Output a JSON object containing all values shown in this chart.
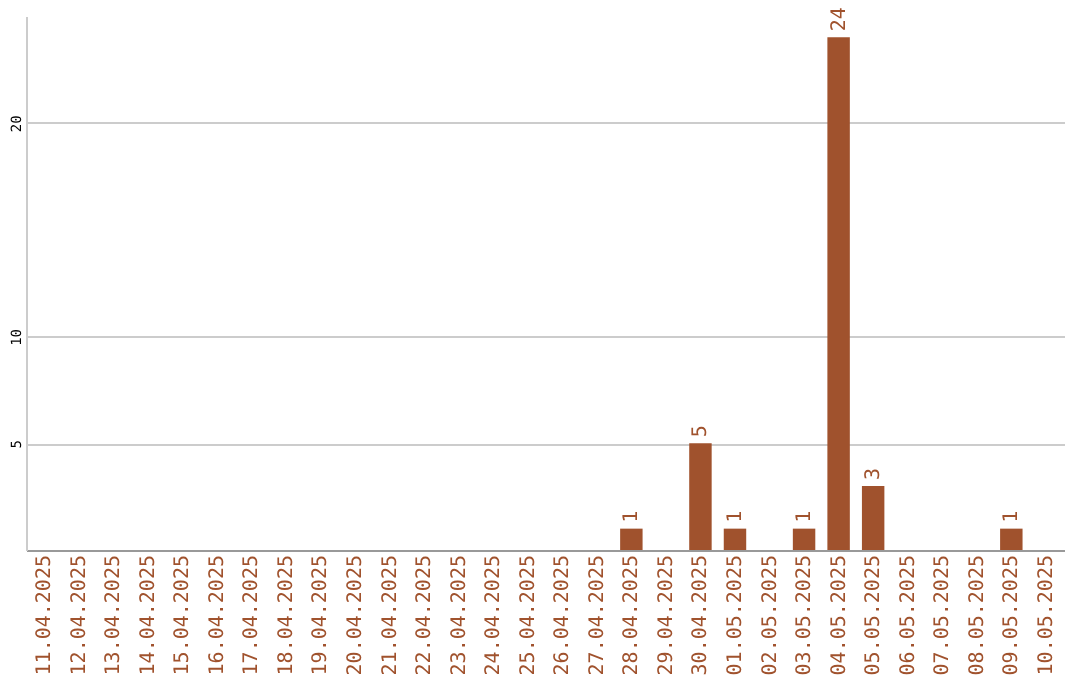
{
  "chart_data": {
    "type": "bar",
    "categories": [
      "11.04.2025",
      "12.04.2025",
      "13.04.2025",
      "14.04.2025",
      "15.04.2025",
      "16.04.2025",
      "17.04.2025",
      "18.04.2025",
      "19.04.2025",
      "20.04.2025",
      "21.04.2025",
      "22.04.2025",
      "23.04.2025",
      "24.04.2025",
      "25.04.2025",
      "26.04.2025",
      "27.04.2025",
      "28.04.2025",
      "29.04.2025",
      "30.04.2025",
      "01.05.2025",
      "02.05.2025",
      "03.05.2025",
      "04.05.2025",
      "05.05.2025",
      "06.05.2025",
      "07.05.2025",
      "08.05.2025",
      "09.05.2025",
      "10.05.2025"
    ],
    "values": [
      null,
      null,
      null,
      null,
      null,
      null,
      null,
      null,
      null,
      null,
      null,
      null,
      null,
      null,
      null,
      null,
      null,
      1,
      null,
      5,
      1,
      null,
      1,
      24,
      3,
      null,
      null,
      null,
      1,
      null
    ],
    "color": "#a0522d",
    "ylim": [
      0,
      25
    ],
    "yticks": [
      5,
      10,
      20
    ],
    "grid": "y",
    "data_labels": true
  }
}
